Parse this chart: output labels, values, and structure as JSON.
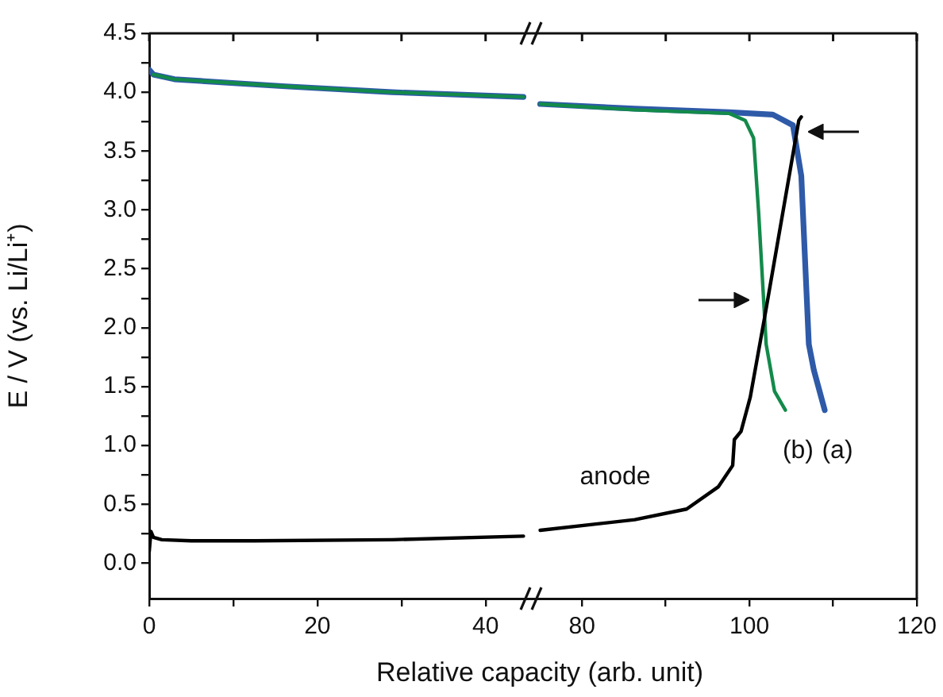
{
  "chart_data": [
    {
      "type": "line",
      "ylabel": "E / V (vs. Li/Li⁺)",
      "xlabel": "Relative capacity (arb. unit)",
      "xlim": [
        0,
        45.5
      ],
      "ylim": [
        -0.3,
        4.5
      ],
      "xticks": [
        0,
        {
          "value": 10,
          "label": null
        },
        20,
        {
          "value": 30,
          "label": null
        },
        40
      ],
      "yticks": [
        {
          "value": 0,
          "label": "0.0"
        },
        {
          "value": 0.25,
          "label": null
        },
        {
          "value": 0.5,
          "label": "0.5"
        },
        {
          "value": 0.75,
          "label": null
        },
        {
          "value": 1,
          "label": "1.0"
        },
        {
          "value": 1.25,
          "label": null
        },
        {
          "value": 1.5,
          "label": "1.5"
        },
        {
          "value": 1.75,
          "label": null
        },
        {
          "value": 2,
          "label": "2.0"
        },
        {
          "value": 2.25,
          "label": null
        },
        {
          "value": 2.5,
          "label": "2.5"
        },
        {
          "value": 2.75,
          "label": null
        },
        {
          "value": 3,
          "label": "3.0"
        },
        {
          "value": 3.25,
          "label": null
        },
        {
          "value": 3.5,
          "label": "3.5"
        },
        {
          "value": 3.75,
          "label": null
        },
        {
          "value": 4,
          "label": "4.0"
        },
        {
          "value": 4.25,
          "label": null
        },
        {
          "value": 4.5,
          "label": "4.5"
        }
      ],
      "grid": false,
      "legend": false,
      "series": [
        {
          "color": "#2e5aa8",
          "x": [
            0,
            0.5,
            3,
            16.2,
            28.9,
            44.5
          ],
          "values": [
            4.19,
            4.15,
            4.11,
            4.05,
            4.0,
            3.96
          ]
        },
        {
          "color": "#138a4a",
          "x": [
            0.5,
            3,
            16.2,
            28.9,
            44.5
          ],
          "values": [
            4.15,
            4.11,
            4.05,
            4.0,
            3.96
          ]
        },
        {
          "color": "#000000",
          "x": [
            0,
            0.2,
            0.5,
            1.5,
            5,
            12.5,
            28.9,
            44.5
          ],
          "values": [
            0.1,
            0.27,
            0.22,
            0.2,
            0.19,
            0.19,
            0.2,
            0.23
          ]
        }
      ]
    },
    {
      "type": "line",
      "xlim": [
        74,
        120
      ],
      "ylim": [
        -0.3,
        4.5
      ],
      "tick_labels": "x",
      "xticks": [
        80,
        {
          "value": 90,
          "label": null
        },
        100,
        {
          "value": 110,
          "label": null
        },
        120
      ],
      "yticks": [
        {
          "value": 0,
          "label": null
        },
        {
          "value": 4.5,
          "label": null
        }
      ],
      "grid": false,
      "legend": false,
      "series": [
        {
          "name": "(a)",
          "color": "#2e5aa8",
          "x": [
            75,
            86.3,
            97.6,
            102.8,
            105.2,
            106.2,
            107.1,
            107.7,
            109
          ],
          "values": [
            3.9,
            3.86,
            3.83,
            3.81,
            3.72,
            3.29,
            1.86,
            1.64,
            1.3
          ]
        },
        {
          "name": "(b)",
          "color": "#138a4a",
          "x": [
            75,
            86.3,
            97.6,
            99.5,
            100.5,
            101.1,
            102,
            103,
            104.3
          ],
          "values": [
            3.9,
            3.85,
            3.82,
            3.76,
            3.61,
            2.98,
            1.86,
            1.46,
            1.3
          ]
        },
        {
          "name": "anode",
          "color": "#000000",
          "x": [
            75,
            86.3,
            92.5,
            96.3,
            98,
            98.2,
            99,
            100.1,
            101.8,
            105.9,
            106.2
          ],
          "values": [
            0.28,
            0.37,
            0.46,
            0.65,
            0.83,
            1.05,
            1.12,
            1.41,
            2.08,
            3.76,
            3.79
          ]
        }
      ]
    }
  ]
}
